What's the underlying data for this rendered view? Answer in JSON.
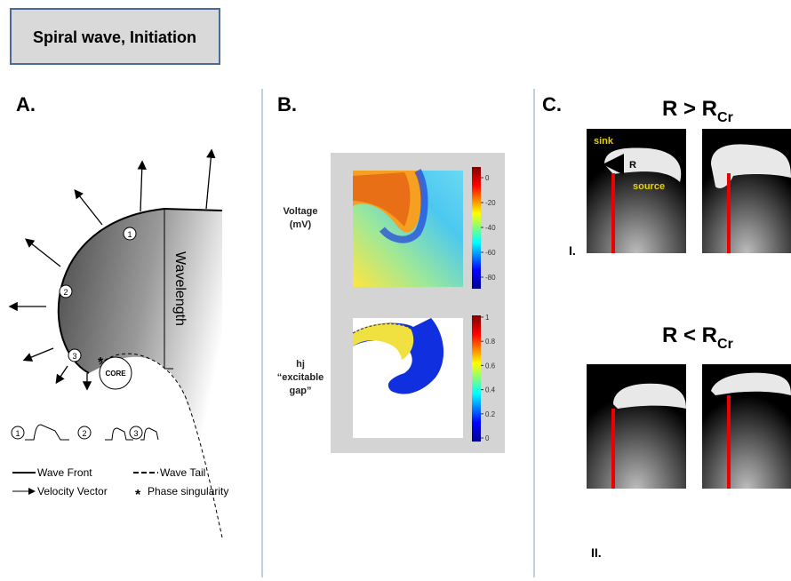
{
  "header": {
    "title": "Spiral wave, Initiation"
  },
  "panel_a": {
    "label": "A.",
    "wavelength": "Wavelength",
    "points": [
      "1",
      "2",
      "3"
    ],
    "core": "CORE",
    "singularity_mark": "*",
    "waveforms": [
      "1",
      "2",
      "3"
    ],
    "legend": {
      "wave_front": "Wave Front",
      "wave_tail": "Wave Tail",
      "velocity_vector": "Velocity Vector",
      "phase_singularity": "Phase singularity"
    }
  },
  "panel_b": {
    "label": "B.",
    "voltage": {
      "label": [
        "Voltage",
        "(mV)"
      ],
      "ticks": [
        0,
        -20,
        -40,
        -60,
        -80
      ]
    },
    "hj": {
      "label": [
        "hj",
        "“excitable",
        "gap”"
      ],
      "ticks": [
        1,
        0.8,
        0.6,
        0.4,
        0.2,
        0
      ]
    }
  },
  "panel_c": {
    "label": "C.",
    "top": {
      "title": "R > R",
      "sub": "Cr"
    },
    "bottom": {
      "title": "R < R",
      "sub": "Cr"
    },
    "annotations": {
      "sink": "sink",
      "r": "R",
      "source": "source"
    },
    "rows": [
      "I.",
      "II."
    ]
  }
}
